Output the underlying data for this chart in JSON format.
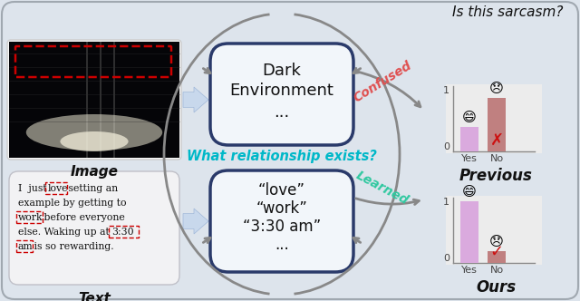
{
  "fig_width": 6.4,
  "fig_height": 3.32,
  "bg_color": "#dde4ec",
  "title": "Is this sarcasm?",
  "center_question": "What relationship exists?",
  "center_question_color": "#00b8c8",
  "box_facecolor": "#f2f6fa",
  "box_edgecolor": "#2a3a6a",
  "confused_label": "Confused",
  "confused_color": "#e05050",
  "learned_label": "Learned",
  "learned_color": "#30c8a0",
  "previous_label": "Previous",
  "ours_label": "Ours",
  "image_label": "Image",
  "text_label": "Text",
  "prev_bar_yes": 0.38,
  "prev_bar_no": 0.82,
  "ours_bar_yes": 0.95,
  "ours_bar_no": 0.18,
  "bar_yes_color": "#daaade",
  "bar_no_color_prev": "#c08080",
  "bar_no_color_ours": "#c08080",
  "arrow_color": "#888888",
  "dashed_rect_color": "#cc0000",
  "block_arrow_color": "#c8d8ec"
}
